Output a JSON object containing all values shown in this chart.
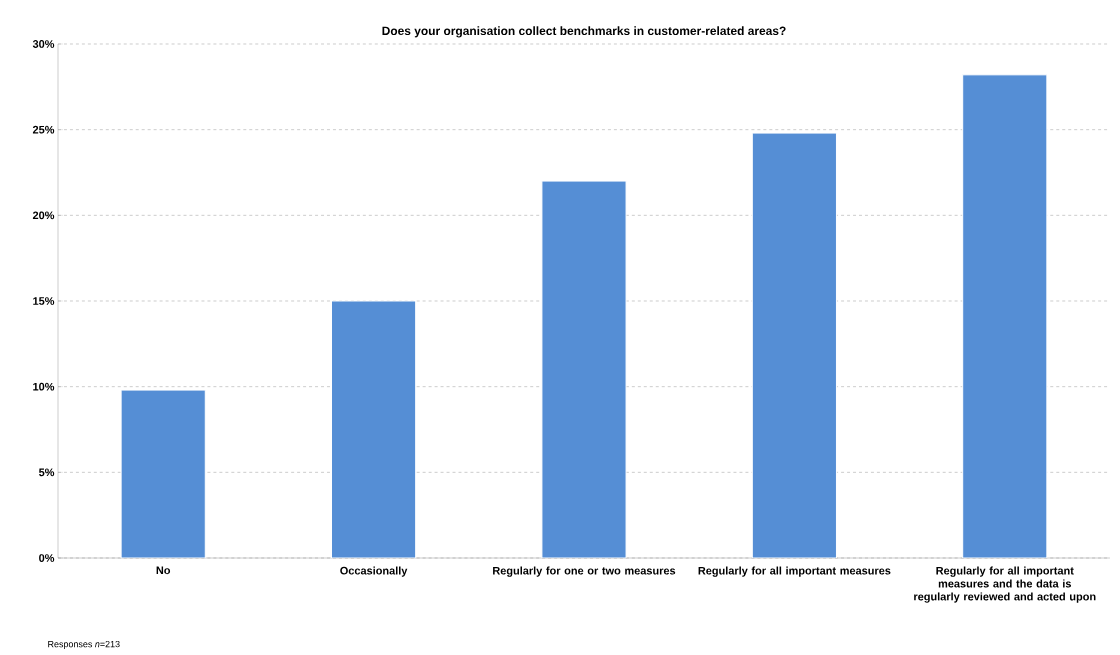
{
  "chart_data": {
    "type": "bar",
    "title": "Does your organisation collect benchmarks in customer-related areas?",
    "categories": [
      "No",
      "Occasionally",
      "Regularly for one or two measures",
      "Regularly for all important measures",
      "Regularly for all important measures and the data is regularly reviewed and acted upon"
    ],
    "values": [
      9.8,
      15.0,
      22.0,
      24.8,
      28.2
    ],
    "color": "#558ed5",
    "ylim": [
      0,
      30
    ],
    "yticks": [
      {
        "value": 0,
        "label": "0%"
      },
      {
        "value": 5,
        "label": "5%"
      },
      {
        "value": 10,
        "label": "10%"
      },
      {
        "value": 15,
        "label": "15%"
      },
      {
        "value": 20,
        "label": "20%"
      },
      {
        "value": 25,
        "label": "25%"
      },
      {
        "value": 30,
        "label": "30%"
      }
    ],
    "grid": "y",
    "annotations": [
      "Responses *n*=213"
    ]
  }
}
